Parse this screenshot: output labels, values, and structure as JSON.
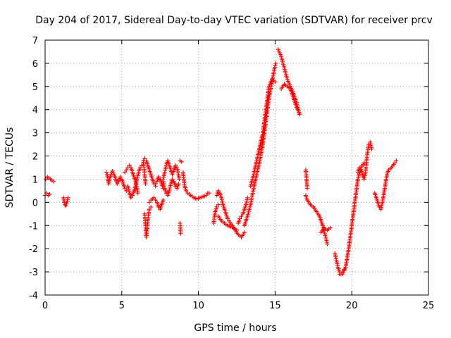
{
  "chart_data": {
    "type": "scatter",
    "title": "Day 204 of 2017, Sidereal Day-to-day VTEC variation (SDTVAR) for receiver prcv",
    "xlabel": "GPS time / hours",
    "ylabel": "SDTVAR / TECUs",
    "xlim": [
      0,
      25
    ],
    "ylim": [
      -4,
      7
    ],
    "xticks": [
      0,
      5,
      10,
      15,
      20,
      25
    ],
    "yticks": [
      -4,
      -3,
      -2,
      -1,
      0,
      1,
      2,
      3,
      4,
      5,
      6,
      7
    ],
    "grid": true,
    "marker": "plus",
    "color": "#ff0000",
    "series": [
      {
        "name": "SDTVAR",
        "segments": [
          [
            [
              0.0,
              0.3
            ],
            [
              0.1,
              0.4
            ],
            [
              0.2,
              0.3
            ],
            [
              0.3,
              0.35
            ]
          ],
          [
            [
              0.05,
              1.0
            ],
            [
              0.15,
              1.1
            ],
            [
              0.25,
              1.05
            ],
            [
              0.35,
              1.0
            ],
            [
              0.45,
              0.95
            ],
            [
              0.55,
              0.9
            ]
          ],
          [
            [
              1.2,
              0.2
            ],
            [
              1.25,
              0.0
            ],
            [
              1.3,
              -0.1
            ],
            [
              1.35,
              -0.15
            ],
            [
              1.4,
              -0.05
            ],
            [
              1.45,
              0.05
            ],
            [
              1.5,
              0.2
            ]
          ],
          [
            [
              4.0,
              1.3
            ],
            [
              4.05,
              1.2
            ],
            [
              4.1,
              1.0
            ],
            [
              4.15,
              0.8
            ],
            [
              4.2,
              1.0
            ],
            [
              4.3,
              1.2
            ],
            [
              4.4,
              1.35
            ],
            [
              4.5,
              1.2
            ],
            [
              4.6,
              1.0
            ],
            [
              4.7,
              0.8
            ],
            [
              4.8,
              0.9
            ],
            [
              4.9,
              1.1
            ],
            [
              5.0,
              1.0
            ],
            [
              5.1,
              0.8
            ],
            [
              5.2,
              0.6
            ],
            [
              5.3,
              0.5
            ]
          ],
          [
            [
              5.2,
              1.3
            ],
            [
              5.3,
              1.4
            ],
            [
              5.4,
              1.5
            ],
            [
              5.5,
              1.6
            ],
            [
              5.6,
              1.5
            ],
            [
              5.7,
              1.3
            ],
            [
              5.8,
              1.1
            ],
            [
              5.9,
              0.9
            ],
            [
              6.0,
              0.6
            ],
            [
              6.05,
              0.4
            ]
          ],
          [
            [
              5.4,
              0.7
            ],
            [
              5.5,
              0.4
            ],
            [
              5.6,
              0.2
            ],
            [
              5.7,
              0.3
            ],
            [
              5.8,
              0.5
            ],
            [
              5.9,
              0.7
            ],
            [
              6.0,
              1.0
            ],
            [
              6.1,
              1.3
            ],
            [
              6.2,
              1.5
            ],
            [
              6.3,
              1.6
            ]
          ],
          [
            [
              6.4,
              1.8
            ],
            [
              6.45,
              1.5
            ],
            [
              6.5,
              1.2
            ],
            [
              6.55,
              0.8
            ]
          ],
          [
            [
              6.5,
              -0.5
            ],
            [
              6.55,
              -1.0
            ],
            [
              6.6,
              -1.5
            ],
            [
              6.65,
              -1.2
            ],
            [
              6.7,
              -0.8
            ],
            [
              6.75,
              -0.5
            ],
            [
              6.8,
              -0.3
            ],
            [
              6.9,
              -0.2
            ]
          ],
          [
            [
              6.5,
              1.9
            ],
            [
              6.6,
              1.8
            ],
            [
              6.7,
              1.6
            ],
            [
              6.8,
              1.4
            ],
            [
              6.9,
              1.2
            ],
            [
              7.0,
              1.0
            ],
            [
              7.1,
              0.8
            ],
            [
              7.2,
              0.7
            ]
          ],
          [
            [
              6.8,
              0.0
            ],
            [
              6.9,
              0.1
            ],
            [
              7.0,
              0.15
            ],
            [
              7.1,
              0.2
            ],
            [
              7.2,
              0.1
            ],
            [
              7.3,
              0.0
            ],
            [
              7.4,
              -0.2
            ],
            [
              7.5,
              -0.3
            ],
            [
              7.6,
              -0.1
            ],
            [
              7.7,
              0.1
            ]
          ],
          [
            [
              7.2,
              0.8
            ],
            [
              7.3,
              0.9
            ],
            [
              7.4,
              1.1
            ],
            [
              7.5,
              1.0
            ],
            [
              7.6,
              0.8
            ],
            [
              7.7,
              0.6
            ]
          ],
          [
            [
              7.7,
              1.0
            ],
            [
              7.8,
              1.3
            ],
            [
              7.9,
              1.6
            ],
            [
              8.0,
              1.8
            ],
            [
              8.1,
              1.6
            ],
            [
              8.2,
              1.4
            ],
            [
              8.3,
              1.2
            ],
            [
              8.4,
              1.4
            ],
            [
              8.5,
              1.6
            ],
            [
              8.6,
              1.5
            ],
            [
              8.7,
              1.2
            ],
            [
              8.75,
              1.0
            ]
          ],
          [
            [
              7.7,
              0.9
            ],
            [
              7.8,
              0.6
            ],
            [
              7.9,
              0.4
            ],
            [
              8.0,
              0.3
            ],
            [
              8.1,
              0.5
            ],
            [
              8.2,
              0.8
            ],
            [
              8.3,
              1.0
            ],
            [
              8.4,
              0.9
            ],
            [
              8.5,
              0.7
            ],
            [
              8.6,
              0.6
            ],
            [
              8.7,
              0.8
            ]
          ],
          [
            [
              8.8,
              1.8
            ],
            [
              8.9,
              1.75
            ]
          ],
          [
            [
              8.8,
              -0.9
            ],
            [
              8.82,
              -1.0
            ],
            [
              8.84,
              -1.35
            ]
          ],
          [
            [
              9.0,
              1.3
            ],
            [
              9.05,
              1.0
            ],
            [
              9.1,
              0.7
            ],
            [
              9.2,
              0.5
            ],
            [
              9.3,
              0.4
            ],
            [
              9.5,
              0.3
            ],
            [
              9.7,
              0.2
            ],
            [
              9.9,
              0.15
            ],
            [
              10.1,
              0.2
            ],
            [
              10.3,
              0.25
            ],
            [
              10.5,
              0.3
            ],
            [
              10.6,
              0.4
            ],
            [
              10.7,
              0.4
            ]
          ],
          [
            [
              11.0,
              -0.9
            ],
            [
              11.05,
              -0.6
            ],
            [
              11.1,
              -0.4
            ],
            [
              11.2,
              -0.2
            ],
            [
              11.3,
              -0.1
            ]
          ],
          [
            [
              11.2,
              0.3
            ],
            [
              11.3,
              0.5
            ],
            [
              11.4,
              0.4
            ],
            [
              11.5,
              0.2
            ],
            [
              11.6,
              -0.1
            ],
            [
              11.7,
              -0.3
            ],
            [
              11.8,
              -0.5
            ],
            [
              11.9,
              -0.7
            ],
            [
              12.0,
              -0.8
            ],
            [
              12.2,
              -1.0
            ],
            [
              12.4,
              -1.2
            ],
            [
              12.6,
              -1.4
            ],
            [
              12.8,
              -1.5
            ],
            [
              13.0,
              -1.3
            ]
          ],
          [
            [
              11.3,
              -0.6
            ],
            [
              11.5,
              -0.8
            ],
            [
              11.7,
              -0.9
            ],
            [
              11.9,
              -1.0
            ],
            [
              12.1,
              -1.05
            ],
            [
              12.3,
              -1.1
            ],
            [
              12.5,
              -1.2
            ]
          ],
          [
            [
              12.6,
              -0.9
            ],
            [
              12.7,
              -0.7
            ],
            [
              12.8,
              -0.6
            ],
            [
              12.9,
              -0.5
            ],
            [
              13.0,
              -0.3
            ],
            [
              13.1,
              -0.1
            ],
            [
              13.2,
              0.2
            ]
          ],
          [
            [
              13.0,
              -1.0
            ],
            [
              13.2,
              -0.6
            ],
            [
              13.4,
              -0.1
            ],
            [
              13.6,
              0.6
            ],
            [
              13.8,
              1.2
            ],
            [
              14.0,
              1.8
            ],
            [
              14.2,
              2.5
            ],
            [
              14.4,
              3.5
            ],
            [
              14.6,
              4.5
            ],
            [
              14.8,
              5.2
            ],
            [
              15.0,
              5.9
            ],
            [
              15.05,
              6.0
            ]
          ],
          [
            [
              13.4,
              0.7
            ],
            [
              13.6,
              1.2
            ],
            [
              13.8,
              1.8
            ],
            [
              14.0,
              2.4
            ],
            [
              14.2,
              3.0
            ],
            [
              14.4,
              4.0
            ],
            [
              14.6,
              5.0
            ],
            [
              14.8,
              5.3
            ],
            [
              15.0,
              5.2
            ]
          ],
          [
            [
              15.2,
              6.6
            ],
            [
              15.4,
              6.3
            ],
            [
              15.6,
              5.8
            ],
            [
              15.8,
              5.3
            ],
            [
              16.0,
              5.0
            ],
            [
              16.2,
              4.7
            ],
            [
              16.4,
              4.3
            ],
            [
              16.6,
              3.8
            ]
          ],
          [
            [
              15.4,
              4.9
            ],
            [
              15.6,
              5.1
            ],
            [
              15.8,
              5.0
            ],
            [
              16.0,
              4.9
            ],
            [
              16.2,
              4.5
            ],
            [
              16.4,
              4.1
            ],
            [
              16.6,
              3.8
            ]
          ],
          [
            [
              17.0,
              1.4
            ],
            [
              17.05,
              1.0
            ],
            [
              17.1,
              0.6
            ]
          ],
          [
            [
              17.0,
              0.3
            ],
            [
              17.1,
              0.1
            ],
            [
              17.3,
              -0.1
            ],
            [
              17.5,
              -0.2
            ],
            [
              17.7,
              -0.4
            ],
            [
              17.9,
              -0.6
            ],
            [
              18.1,
              -1.0
            ],
            [
              18.3,
              -1.5
            ],
            [
              18.4,
              -1.8
            ]
          ],
          [
            [
              18.0,
              -1.3
            ],
            [
              18.2,
              -1.1
            ],
            [
              18.4,
              -1.2
            ],
            [
              18.6,
              -1.1
            ]
          ],
          [
            [
              18.9,
              -2.2
            ],
            [
              19.0,
              -2.5
            ],
            [
              19.1,
              -2.8
            ],
            [
              19.2,
              -3.0
            ],
            [
              19.3,
              -3.1
            ],
            [
              19.4,
              -3.0
            ],
            [
              19.5,
              -2.9
            ]
          ],
          [
            [
              19.2,
              -3.1
            ],
            [
              19.4,
              -3.1
            ],
            [
              19.6,
              -2.8
            ],
            [
              19.8,
              -2.0
            ],
            [
              20.0,
              -1.0
            ],
            [
              20.2,
              0.0
            ],
            [
              20.4,
              1.0
            ],
            [
              20.6,
              1.5
            ],
            [
              20.8,
              1.7
            ]
          ],
          [
            [
              20.4,
              1.3
            ],
            [
              20.5,
              1.5
            ],
            [
              20.6,
              1.4
            ],
            [
              20.7,
              1.2
            ],
            [
              20.8,
              1.0
            ],
            [
              20.9,
              1.3
            ],
            [
              21.0,
              2.0
            ],
            [
              21.1,
              2.5
            ],
            [
              21.2,
              2.6
            ],
            [
              21.3,
              2.3
            ]
          ],
          [
            [
              21.5,
              0.4
            ],
            [
              21.6,
              0.2
            ],
            [
              21.7,
              0.0
            ],
            [
              21.8,
              -0.2
            ],
            [
              21.9,
              -0.3
            ],
            [
              22.0,
              0.0
            ],
            [
              22.1,
              0.4
            ],
            [
              22.2,
              0.8
            ],
            [
              22.3,
              1.2
            ],
            [
              22.4,
              1.4
            ],
            [
              22.6,
              1.5
            ],
            [
              22.8,
              1.7
            ],
            [
              22.9,
              1.8
            ]
          ]
        ]
      }
    ]
  }
}
